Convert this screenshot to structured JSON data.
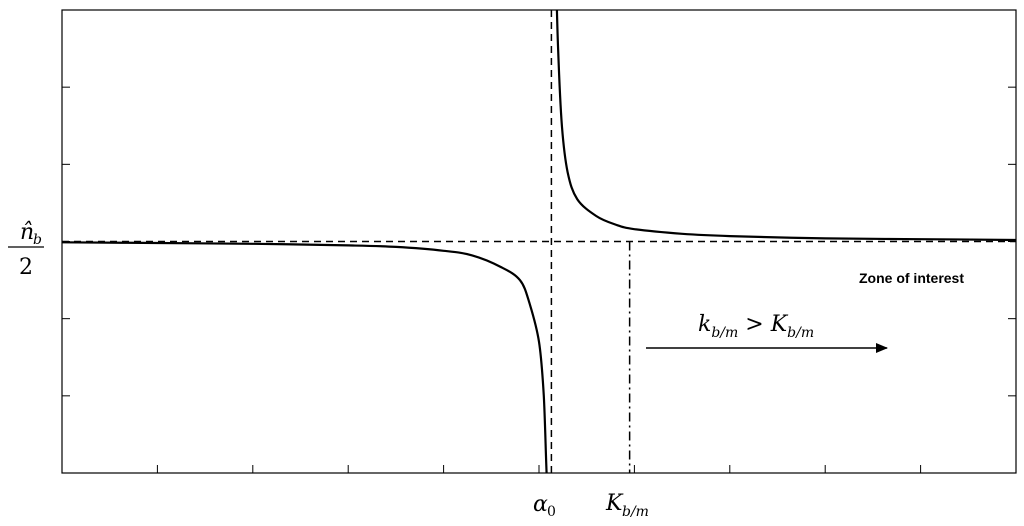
{
  "chart_data": {
    "type": "line",
    "title": "",
    "xlabel": "",
    "ylabel": "n̂_b / 2",
    "ylabel_parts": {
      "numerator": "n̂",
      "numerator_sub": "b",
      "denominator": "2"
    },
    "grid": false,
    "xlim": [
      0,
      10
    ],
    "ylim": [
      -3,
      3
    ],
    "asymptote_x": 5.13,
    "asymptote_y": 0,
    "threshold_x": 5.95,
    "x_tick_labels": [
      {
        "text": "α",
        "sub": "0",
        "at": 5.13
      },
      {
        "text": "K",
        "sub": "b/m",
        "at": 5.95
      }
    ],
    "series": [
      {
        "branch": "left",
        "x": [
          0,
          1,
          2,
          3,
          3.5,
          4,
          4.3,
          4.6,
          4.8,
          4.9,
          5.0,
          5.05,
          5.08,
          5.1
        ],
        "y": [
          -0.01,
          -0.02,
          -0.03,
          -0.05,
          -0.07,
          -0.12,
          -0.18,
          -0.33,
          -0.5,
          -0.8,
          -1.3,
          -2.0,
          -3.0,
          -3.4
        ]
      },
      {
        "branch": "right",
        "x": [
          5.18,
          5.2,
          5.24,
          5.3,
          5.4,
          5.6,
          5.8,
          6.0,
          6.5,
          7.0,
          8.0,
          9.0,
          10.0
        ],
        "y": [
          3.4,
          2.5,
          1.5,
          0.9,
          0.55,
          0.33,
          0.22,
          0.16,
          0.1,
          0.07,
          0.04,
          0.03,
          0.02
        ]
      }
    ],
    "annotations": [
      {
        "text": "Zone of interest"
      },
      {
        "text": "k",
        "sub": "b/m",
        "op": " > ",
        "text2": "K",
        "sub2": "b/m"
      }
    ]
  }
}
